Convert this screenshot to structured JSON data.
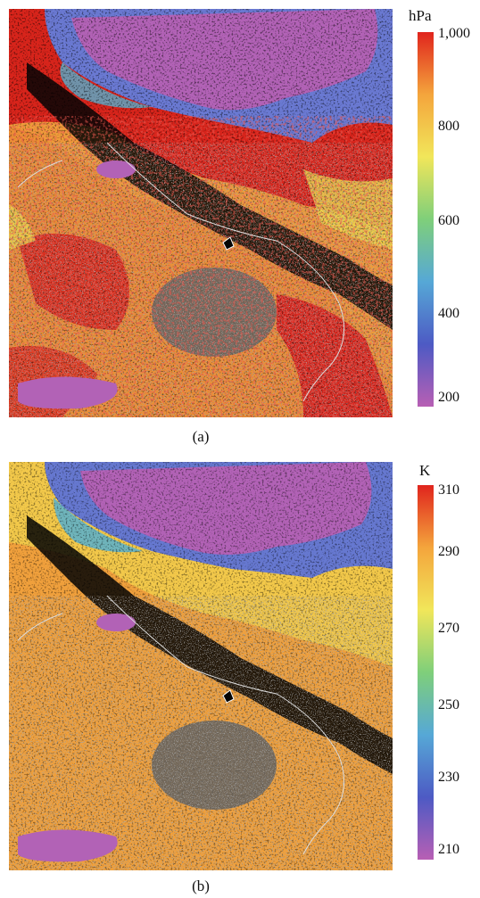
{
  "panel_a": {
    "caption": "(a)",
    "colorbar": {
      "unit": "hPa",
      "ticks": [
        "1,000",
        "800",
        "600",
        "400",
        "200"
      ],
      "range": [
        200,
        1000
      ],
      "colors_low_to_high": [
        "#b85fb4",
        "#4d5ac4",
        "#56a8d6",
        "#7fcf7a",
        "#f1e65a",
        "#f4a53c",
        "#e0241d"
      ]
    }
  },
  "panel_b": {
    "caption": "(b)",
    "colorbar": {
      "unit": "K",
      "ticks": [
        "310",
        "290",
        "270",
        "250",
        "230",
        "210"
      ],
      "range": [
        210,
        310
      ],
      "colors_low_to_high": [
        "#b85fb4",
        "#4d5ac4",
        "#56a8d6",
        "#7fcf7a",
        "#f1e65a",
        "#f4a53c",
        "#e0241d"
      ]
    }
  },
  "colors": {
    "no_data_land": "#5f5f5f",
    "no_data_black": "#050505",
    "coastline": "#dcdcdc"
  }
}
